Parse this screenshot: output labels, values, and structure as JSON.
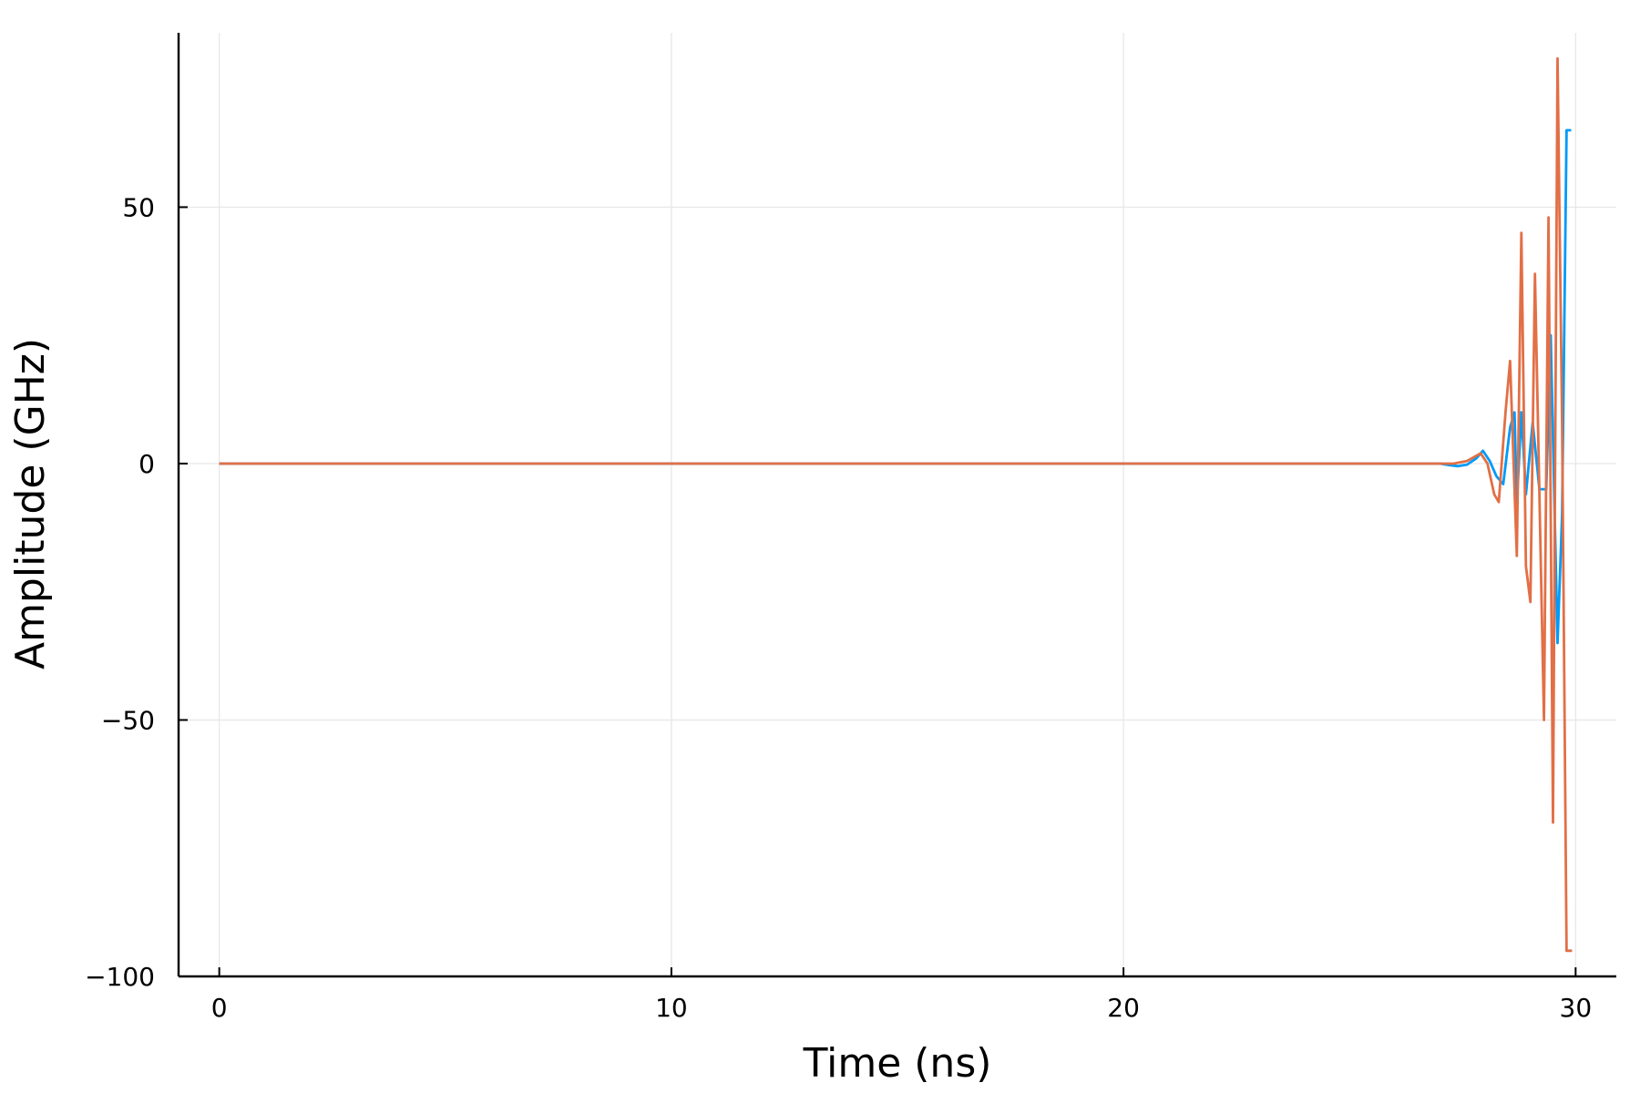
{
  "chart_data": {
    "type": "line",
    "xlabel": "Time (ns)",
    "ylabel": "Amplitude (GHz)",
    "xlim": [
      -0.9,
      30.9
    ],
    "ylim": [
      -100,
      84
    ],
    "xticks": [
      0,
      10,
      20,
      30
    ],
    "xtick_labels": [
      "0",
      "10",
      "20",
      "30"
    ],
    "yticks": [
      -100,
      -50,
      0,
      50
    ],
    "ytick_labels": [
      "−100",
      "−50",
      "0",
      "50"
    ],
    "grid": true,
    "legend": "none",
    "series": [
      {
        "color": "#009af9",
        "x": [
          0,
          5,
          10,
          15,
          20,
          25,
          26.5,
          27,
          27.2,
          27.4,
          27.6,
          27.8,
          27.95,
          28.1,
          28.25,
          28.4,
          28.55,
          28.65,
          28.7,
          28.8,
          28.9,
          29.05,
          29.2,
          29.35,
          29.45,
          29.6,
          29.7,
          29.8,
          29.85,
          29.9
        ],
        "y": [
          0,
          0,
          0,
          0,
          0,
          0,
          0,
          0,
          -0.3,
          -0.5,
          -0.2,
          1,
          2.5,
          0.5,
          -2.5,
          -4,
          7,
          10,
          -8,
          10,
          -6,
          8,
          -5,
          -5,
          25,
          -35,
          -10,
          65,
          65,
          65
        ]
      },
      {
        "color": "#e26f46",
        "x": [
          0,
          5,
          10,
          15,
          20,
          25,
          26.5,
          27,
          27.3,
          27.6,
          27.9,
          28.05,
          28.2,
          28.3,
          28.45,
          28.55,
          28.7,
          28.8,
          28.9,
          29.0,
          29.1,
          29.3,
          29.4,
          29.5,
          29.6,
          29.7,
          29.8,
          29.85,
          29.92
        ],
        "y": [
          0,
          0,
          0,
          0,
          0,
          0,
          0,
          0,
          0,
          0.5,
          2,
          0,
          -6,
          -7.5,
          10,
          20,
          -18,
          45,
          -20,
          -27,
          37,
          -50,
          48,
          -70,
          79,
          8,
          -95,
          -95,
          -95
        ]
      }
    ]
  }
}
